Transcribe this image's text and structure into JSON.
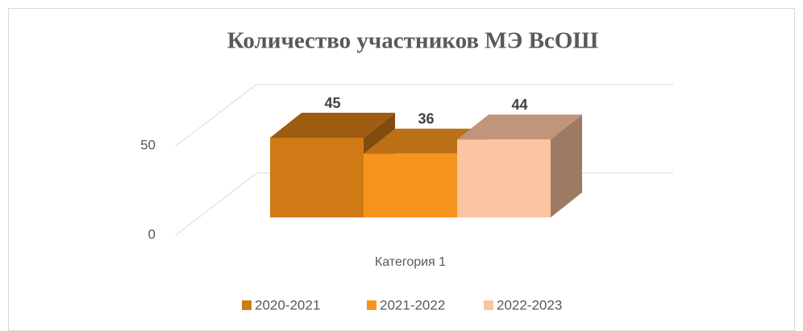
{
  "chart_data": {
    "type": "bar3d",
    "title": "Количество участников МЭ ВсОШ",
    "categories": [
      "Категория 1"
    ],
    "series": [
      {
        "name": "2020-2021",
        "color": "#D07A16",
        "values": [
          45
        ]
      },
      {
        "name": "2021-2022",
        "color": "#F7941D",
        "values": [
          36
        ]
      },
      {
        "name": "2022-2023",
        "color": "#FCC4A0",
        "values": [
          44
        ]
      }
    ],
    "ylim": [
      0,
      50
    ],
    "yticks": [
      0,
      50
    ],
    "grid": true,
    "legend": "bottom",
    "value_labels_shown": true
  }
}
